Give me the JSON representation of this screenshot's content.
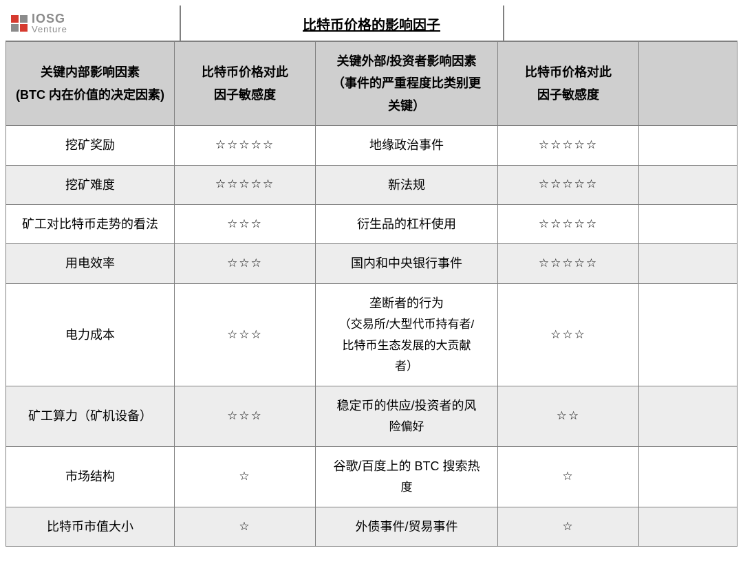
{
  "colors": {
    "logo_red": "#d63a2f",
    "logo_gray": "#8b8b8b",
    "logo_text_gray": "#8b8b8b",
    "header_bg": "#cfcfcf",
    "row_alt_bg": "#ededed",
    "border": "#808080",
    "background": "#ffffff",
    "text": "#000000"
  },
  "logo": {
    "line1": "IOSG",
    "line2": "Venture"
  },
  "title": "比特币价格的影响因子",
  "table": {
    "headers": {
      "col1_line1": "关键内部影响因素",
      "col1_line2": "(BTC 内在价值的决定因素)",
      "col2_line1": "比特币价格对此",
      "col2_line2": "因子敏感度",
      "col3_line1": "关键外部/投资者影响因素",
      "col3_line2": "（事件的严重程度比类别更",
      "col3_line3": "关键）",
      "col4_line1": "比特币价格对此",
      "col4_line2": "因子敏感度"
    },
    "rows": [
      {
        "internal": "挖矿奖励",
        "internal_stars": "☆☆☆☆☆",
        "external": "地缘政治事件",
        "external_stars": "☆☆☆☆☆",
        "alt": false
      },
      {
        "internal": "挖矿难度",
        "internal_stars": "☆☆☆☆☆",
        "external": "新法规",
        "external_stars": "☆☆☆☆☆",
        "alt": true
      },
      {
        "internal": "矿工对比特币走势的看法",
        "internal_stars": "☆☆☆",
        "external": "衍生品的杠杆使用",
        "external_stars": "☆☆☆☆☆",
        "alt": false
      },
      {
        "internal": "用电效率",
        "internal_stars": "☆☆☆",
        "external": "国内和中央银行事件",
        "external_stars": "☆☆☆☆☆",
        "alt": true
      },
      {
        "internal": "电力成本",
        "internal_stars": "☆☆☆",
        "external": "垄断者的行为",
        "external_sub1": "（交易所/大型代币持有者/",
        "external_sub2": "比特币生态发展的大贡献",
        "external_sub3": "者）",
        "external_stars": "☆☆☆",
        "alt": false
      },
      {
        "internal": "矿工算力（矿机设备）",
        "internal_stars": "☆☆☆",
        "external": "稳定币的供应/投资者的风",
        "external_sub1": "险偏好",
        "external_stars": "☆☆",
        "alt": true
      },
      {
        "internal": "市场结构",
        "internal_stars": "☆",
        "external": "谷歌/百度上的 BTC 搜索热",
        "external_sub1": "度",
        "external_stars": "☆",
        "alt": false
      },
      {
        "internal": "比特币市值大小",
        "internal_stars": "☆",
        "external": "外债事件/贸易事件",
        "external_stars": "☆",
        "alt": true
      }
    ]
  }
}
